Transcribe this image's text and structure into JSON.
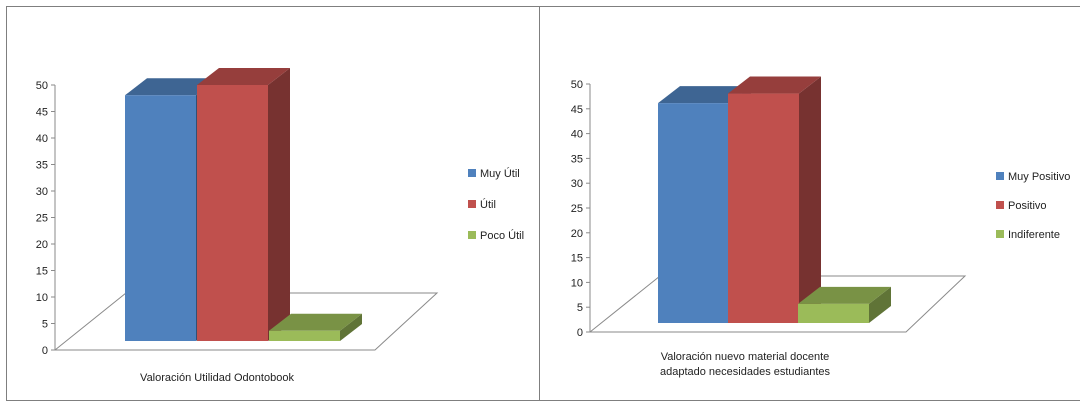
{
  "chart_data": [
    {
      "type": "bar",
      "style": "3d-clustered-column",
      "categories": [
        "Valoración Utilidad Odontobook"
      ],
      "series": [
        {
          "name": "Muy Útil",
          "values": [
            48
          ],
          "color": "#4f81bd"
        },
        {
          "name": "Útil",
          "values": [
            50
          ],
          "color": "#c0504d"
        },
        {
          "name": "Poco Útil",
          "values": [
            2
          ],
          "color": "#9bbb59"
        }
      ],
      "ylim": [
        0,
        50
      ],
      "yticks": [
        "0",
        "5",
        "10",
        "15",
        "20",
        "25",
        "30",
        "35",
        "40",
        "45",
        "50"
      ],
      "legend": "right",
      "grid": false
    },
    {
      "type": "bar",
      "style": "3d-clustered-column",
      "categories": [
        "Valoración nuevo material docente adaptado necesidades estudiantes"
      ],
      "series": [
        {
          "name": "Muy Positivo",
          "values": [
            46
          ],
          "color": "#4f81bd"
        },
        {
          "name": "Positivo",
          "values": [
            48
          ],
          "color": "#c0504d"
        },
        {
          "name": "Indiferente",
          "values": [
            4
          ],
          "color": "#9bbb59"
        }
      ],
      "ylim": [
        0,
        50
      ],
      "yticks": [
        "0",
        "5",
        "10",
        "15",
        "20",
        "25",
        "30",
        "35",
        "40",
        "45",
        "50"
      ],
      "legend": "right",
      "grid": false
    }
  ]
}
